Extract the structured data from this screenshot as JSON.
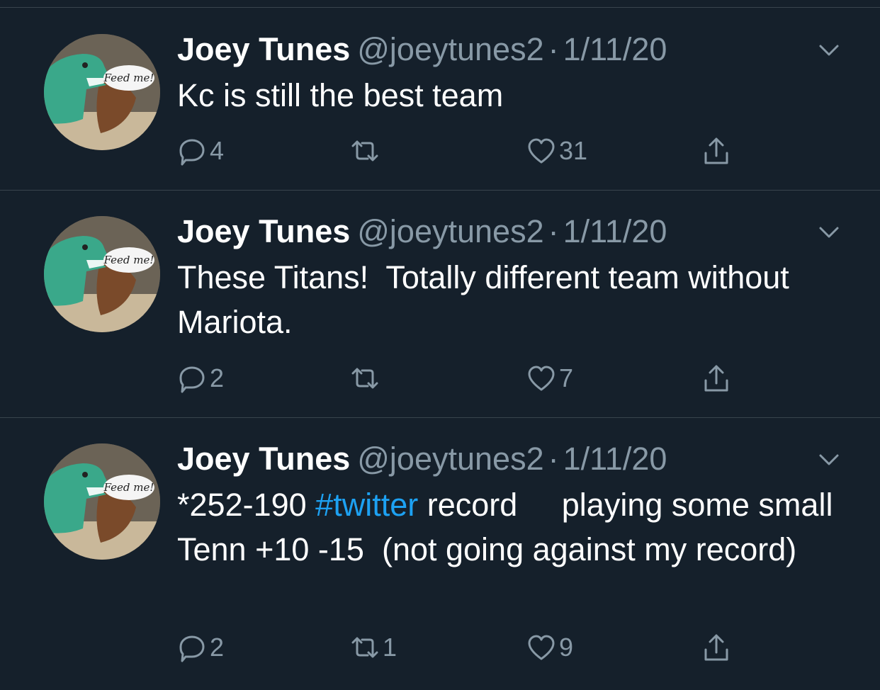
{
  "tweets": [
    {
      "name": "Joey Tunes",
      "handle": "@joeytunes2",
      "separator": "·",
      "date": "1/11/20",
      "text_parts": [
        {
          "t": "Kc is still the best team"
        }
      ],
      "replies": "4",
      "retweets": "",
      "likes": "31"
    },
    {
      "name": "Joey Tunes",
      "handle": "@joeytunes2",
      "separator": "·",
      "date": "1/11/20",
      "text_parts": [
        {
          "t": "These Titans!  Totally different team without Mariota."
        }
      ],
      "replies": "2",
      "retweets": "",
      "likes": "7"
    },
    {
      "name": "Joey Tunes",
      "handle": "@joeytunes2",
      "separator": "·",
      "date": "1/11/20",
      "text_parts": [
        {
          "t": "*252-190 "
        },
        {
          "t": "#twitter",
          "hashtag": true
        },
        {
          "t": " record     playing some small Tenn +10 -15  (not going against my record)"
        }
      ],
      "replies": "2",
      "retweets": "1",
      "likes": "9"
    }
  ],
  "avatar": {
    "speech_bubble_text": "Feed me!",
    "icon": "dinosaur-avatar"
  },
  "icons": {
    "reply": "reply-icon",
    "retweet": "retweet-icon",
    "like": "heart-icon",
    "share": "share-icon",
    "more": "chevron-down-icon"
  },
  "colors": {
    "background": "#15202b",
    "text_primary": "#ffffff",
    "text_secondary": "#8899a6",
    "divider": "#38444d",
    "link": "#1da1f2"
  }
}
